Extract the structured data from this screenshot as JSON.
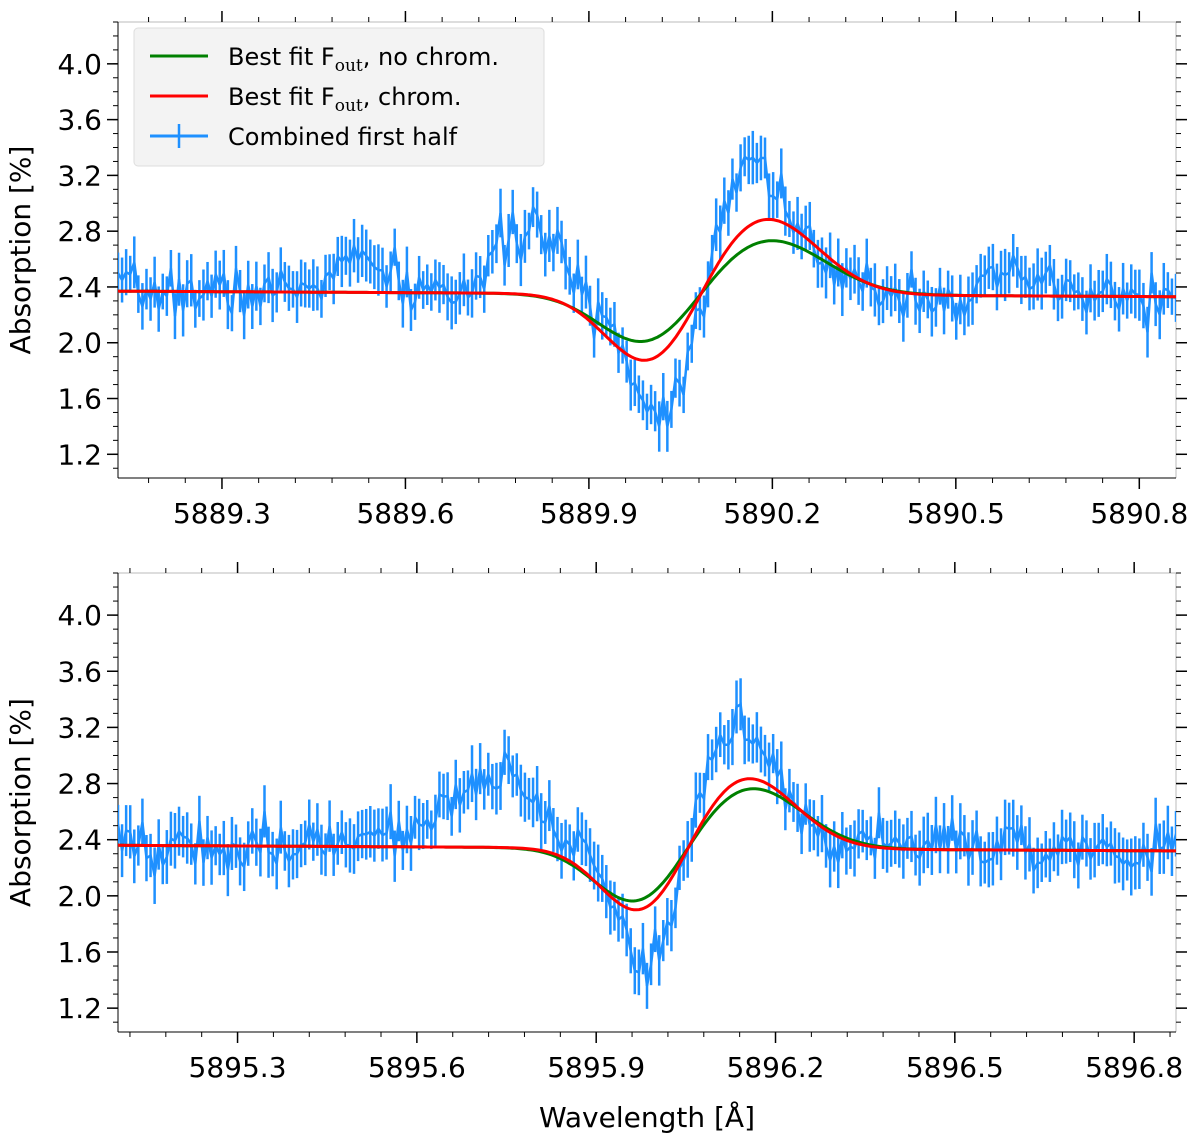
{
  "chart_data": [
    {
      "type": "line",
      "id": "top",
      "title": "",
      "xlabel": "",
      "ylabel": "Absorption [%]",
      "xlim": [
        5889.13,
        5890.86
      ],
      "ylim": [
        1.03,
        4.3
      ],
      "xticks": [
        5889.3,
        5889.6,
        5889.9,
        5890.2,
        5890.5,
        5890.8
      ],
      "xtick_labels": [
        "5889.3",
        "5889.6",
        "5889.9",
        "5890.2",
        "5890.5",
        "5890.8"
      ],
      "yticks": [
        1.2,
        1.6,
        2.0,
        2.4,
        2.8,
        3.2,
        3.6,
        4.0
      ],
      "ytick_labels": [
        "1.2",
        "1.6",
        "2.0",
        "2.4",
        "2.8",
        "3.2",
        "3.6",
        "4.0"
      ],
      "legend": {
        "position": "top-left",
        "entries": [
          {
            "label": "Best fit F",
            "sub": "out",
            "suffix": ", no chrom.",
            "color": "#008000"
          },
          {
            "label": "Best fit F",
            "sub": "out",
            "suffix": ", chrom.",
            "color": "#ff0000"
          },
          {
            "label": " Combined first half",
            "sub": "",
            "suffix": "",
            "color": "#1e90ff"
          }
        ]
      },
      "line_center": 5890.09,
      "continuum": 2.37,
      "peaks": [
        {
          "x": 5889.52,
          "a": 0.22,
          "s": 0.045
        },
        {
          "x": 5889.8,
          "a": 0.48,
          "s": 0.045
        },
        {
          "x": 5890.61,
          "a": 0.12,
          "s": 0.04
        },
        {
          "x": 5890.37,
          "a": 0.05,
          "s": 0.05
        }
      ],
      "series": [
        {
          "name": "Best fit Fout, no chrom.",
          "color": "#008000",
          "model": "fit",
          "amp": 0.38,
          "width": 0.085
        },
        {
          "name": "Best fit Fout, chrom.",
          "color": "#ff0000",
          "model": "fit",
          "amp": 0.53,
          "width": 0.08
        },
        {
          "name": "Combined first half",
          "color": "#1e90ff",
          "model": "observed",
          "amp": 0.95,
          "width": 0.06,
          "errorbar": 0.16,
          "seed": 7
        }
      ]
    },
    {
      "type": "line",
      "id": "bottom",
      "title": "",
      "xlabel": "Wavelength [Å]",
      "ylabel": "Absorption [%]",
      "xlim": [
        5895.1,
        5896.87
      ],
      "ylim": [
        1.03,
        4.3
      ],
      "xticks": [
        5895.3,
        5895.6,
        5895.9,
        5896.2,
        5896.5,
        5896.8
      ],
      "xtick_labels": [
        "5895.3",
        "5895.6",
        "5895.9",
        "5896.2",
        "5896.5",
        "5896.8"
      ],
      "yticks": [
        1.2,
        1.6,
        2.0,
        2.4,
        2.8,
        3.2,
        3.6,
        4.0
      ],
      "ytick_labels": [
        "1.2",
        "1.6",
        "2.0",
        "2.4",
        "2.8",
        "3.2",
        "3.6",
        "4.0"
      ],
      "legend": null,
      "line_center": 5896.06,
      "continuum": 2.36,
      "peaks": [
        {
          "x": 5895.72,
          "a": 0.55,
          "s": 0.06
        },
        {
          "x": 5895.52,
          "a": 0.12,
          "s": 0.06
        },
        {
          "x": 5896.45,
          "a": 0.05,
          "s": 0.06
        }
      ],
      "series": [
        {
          "name": "Best fit Fout, no chrom.",
          "color": "#008000",
          "model": "fit",
          "amp": 0.42,
          "width": 0.08
        },
        {
          "name": "Best fit Fout, chrom.",
          "color": "#ff0000",
          "model": "fit",
          "amp": 0.49,
          "width": 0.075
        },
        {
          "name": "Combined first half",
          "color": "#1e90ff",
          "model": "observed",
          "amp": 0.9,
          "width": 0.06,
          "errorbar": 0.17,
          "seed": 19
        }
      ]
    }
  ]
}
